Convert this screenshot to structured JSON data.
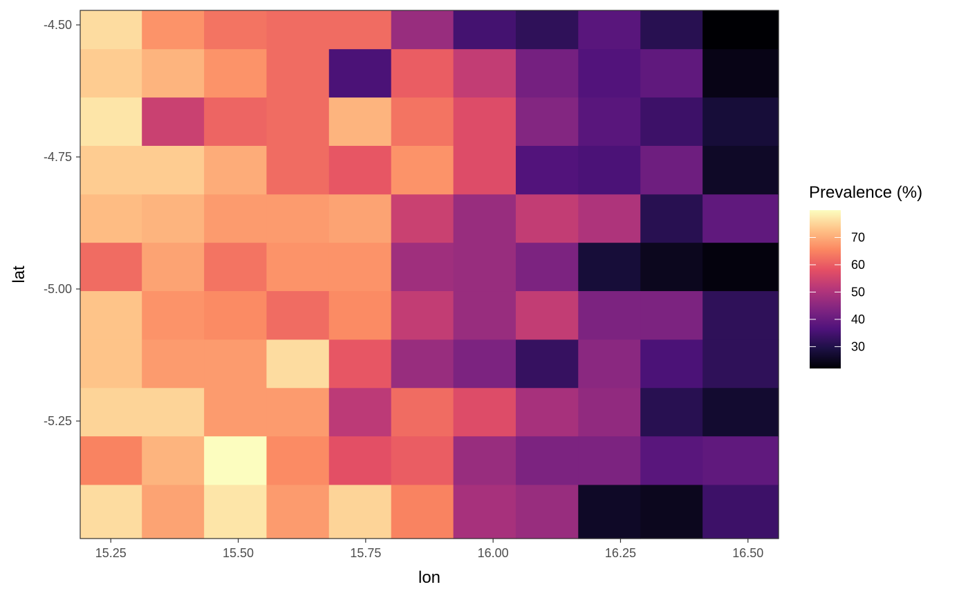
{
  "chart_data": {
    "type": "heatmap",
    "xlabel": "lon",
    "ylabel": "lat",
    "x_ticks": [
      15.25,
      15.5,
      15.75,
      16.0,
      16.25,
      16.5
    ],
    "x_tick_labels": [
      "15.25",
      "15.50",
      "15.75",
      "16.00",
      "16.25",
      "16.50"
    ],
    "y_ticks": [
      -4.5,
      -4.75,
      -5.0,
      -5.25
    ],
    "y_tick_labels": [
      "-4.50",
      "-4.75",
      "-5.00",
      "-5.25"
    ],
    "xlim": [
      15.19,
      16.56
    ],
    "ylim": [
      -5.4725,
      -4.4725
    ],
    "x": [
      15.25,
      15.372,
      15.494,
      15.617,
      15.739,
      15.861,
      15.983,
      16.106,
      16.228,
      16.35,
      16.472
    ],
    "y": [
      -4.5,
      -4.592,
      -4.683,
      -4.775,
      -4.867,
      -4.958,
      -5.05,
      -5.142,
      -5.233,
      -5.325,
      -5.417
    ],
    "values": [
      [
        76,
        67,
        63,
        62,
        62,
        47,
        35,
        32,
        38,
        31,
        22
      ],
      [
        74,
        71,
        67,
        62,
        36,
        60,
        53,
        42,
        37,
        39,
        24
      ],
      [
        77,
        54,
        61,
        62,
        71,
        63,
        57,
        44,
        38,
        34,
        28
      ],
      [
        74,
        74,
        70,
        62,
        59,
        67,
        57,
        37,
        36,
        41,
        26
      ],
      [
        72,
        71,
        68,
        68,
        69,
        54,
        47,
        53,
        50,
        31,
        39
      ],
      [
        62,
        69,
        63,
        67,
        67,
        48,
        47,
        43,
        28,
        25,
        23
      ],
      [
        73,
        67,
        66,
        62,
        66,
        53,
        47,
        53,
        43,
        43,
        32
      ],
      [
        73,
        68,
        68,
        76,
        59,
        47,
        43,
        33,
        45,
        36,
        32
      ],
      [
        75,
        75,
        68,
        68,
        52,
        62,
        57,
        49,
        46,
        31,
        27
      ],
      [
        65,
        71,
        80,
        66,
        58,
        60,
        47,
        43,
        43,
        38,
        39
      ],
      [
        76,
        69,
        77,
        68,
        75,
        65,
        49,
        47,
        26,
        25,
        34
      ]
    ],
    "legend": {
      "title": "Prevalence (%)",
      "position": "right",
      "min": 22,
      "max": 80,
      "ticks": [
        30,
        40,
        50,
        60,
        70
      ],
      "tick_labels": [
        "30",
        "40",
        "50",
        "60",
        "70"
      ]
    },
    "colormap": "magma",
    "grid": false
  }
}
